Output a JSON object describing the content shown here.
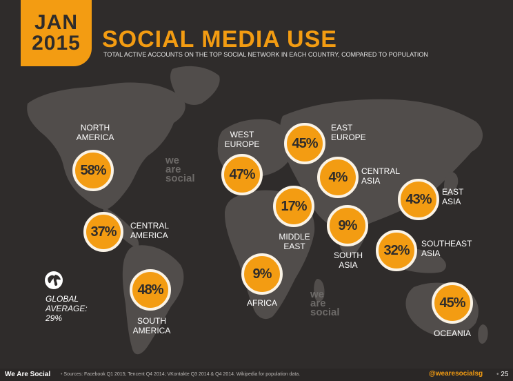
{
  "header": {
    "badge_month": "JAN",
    "badge_year": "2015",
    "title": "SOCIAL MEDIA USE",
    "subtitle": "TOTAL ACTIVE ACCOUNTS ON THE TOP SOCIAL NETWORK IN EACH COUNTRY, COMPARED TO POPULATION"
  },
  "watermark": {
    "line1": "we",
    "line2": "are",
    "line3": "social"
  },
  "regions": [
    {
      "id": "north-america",
      "label": "NORTH\nAMERICA",
      "value": "58%"
    },
    {
      "id": "central-america",
      "label": "CENTRAL\nAMERICA",
      "value": "37%"
    },
    {
      "id": "south-america",
      "label": "SOUTH\nAMERICA",
      "value": "48%"
    },
    {
      "id": "west-europe",
      "label": "WEST\nEUROPE",
      "value": "47%"
    },
    {
      "id": "east-europe",
      "label": "EAST\nEUROPE",
      "value": "45%"
    },
    {
      "id": "central-asia",
      "label": "CENTRAL\nASIA",
      "value": "4%"
    },
    {
      "id": "middle-east",
      "label": "MIDDLE\nEAST",
      "value": "17%"
    },
    {
      "id": "south-asia",
      "label": "SOUTH\nASIA",
      "value": "9%"
    },
    {
      "id": "east-asia",
      "label": "EAST\nASIA",
      "value": "43%"
    },
    {
      "id": "southeast-asia",
      "label": "SOUTHEAST\nASIA",
      "value": "32%"
    },
    {
      "id": "africa",
      "label": "AFRICA",
      "value": "9%"
    },
    {
      "id": "oceania",
      "label": "OCEANIA",
      "value": "45%"
    }
  ],
  "global": {
    "label": "GLOBAL\nAVERAGE:\n29%",
    "icon": "globe-icon"
  },
  "footer": {
    "brand": "We Are Social",
    "separator": "•",
    "sources": "Sources: Facebook Q1 2015; Tencent Q4 2014; VKontakte Q3 2014 & Q4 2014. Wikipedia for population data.",
    "handle": "@wearesocialsg",
    "page_number": "25"
  },
  "colors": {
    "accent": "#f39c12",
    "background": "#2f2c2b",
    "land": "#514d4b",
    "text": "#ffffff"
  }
}
